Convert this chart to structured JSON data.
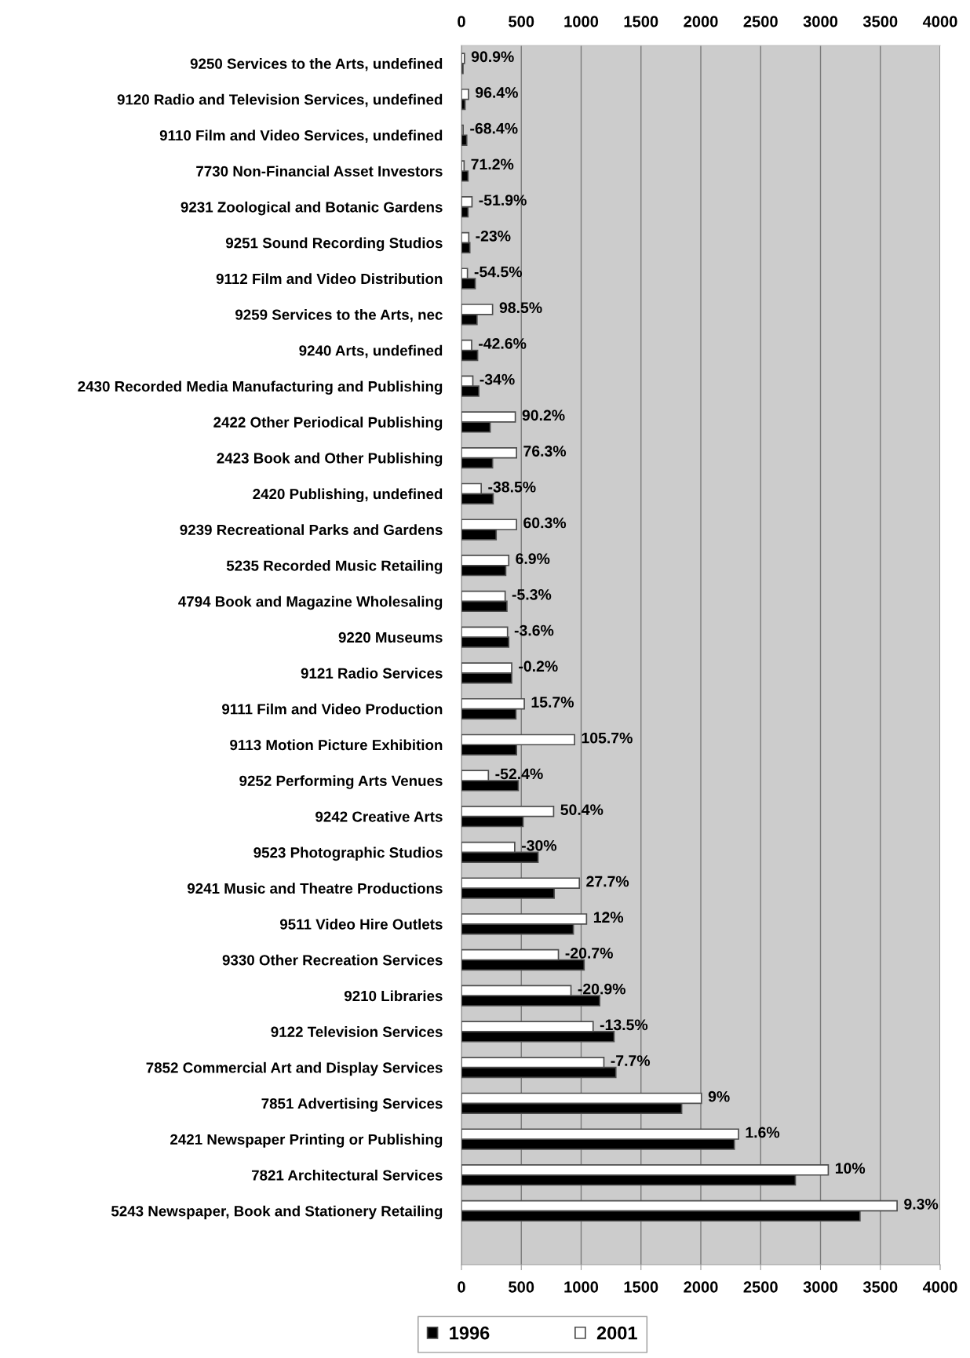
{
  "chart_data": {
    "type": "bar",
    "orientation": "horizontal",
    "categories": [
      "9250 Services to the Arts, undefined",
      "9120 Radio and Television Services, undefined",
      "9110 Film and Video Services, undefined",
      "7730 Non-Financial Asset Investors",
      "9231 Zoological and Botanic Gardens",
      "9251 Sound Recording Studios",
      "9112 Film and Video Distribution",
      "9259 Services to the Arts, nec",
      "9240 Arts, undefined",
      "2430 Recorded Media Manufacturing and Publishing",
      "2422 Other Periodical Publishing",
      "2423 Book and Other Publishing",
      "2420 Publishing, undefined",
      "9239 Recreational Parks and Gardens",
      "5235 Recorded Music Retailing",
      "4794 Book and Magazine Wholesaling",
      "9220 Museums",
      "9121 Radio Services",
      "9111 Film and Video Production",
      "9113 Motion Picture Exhibition",
      "9252 Performing Arts Venues",
      "9242 Creative Arts",
      "9523 Photographic Studios",
      "9241 Music and Theatre Productions",
      "9511 Video Hire Outlets",
      "9330 Other Recreation Services",
      "9210 Libraries",
      "9122 Television Services",
      "7852 Commercial Art and Display Services",
      "7851 Advertising Services",
      "2421 Newspaper Printing or Publishing",
      "7821 Architectural Services",
      "5243 Newspaper, Book and Stationery Retailing",
      null
    ],
    "series": [
      {
        "name": "1996",
        "color": "#000000",
        "values": [
          13,
          30,
          44,
          55,
          55,
          70,
          115,
          130,
          135,
          145,
          240,
          260,
          265,
          290,
          370,
          380,
          395,
          420,
          455,
          460,
          475,
          515,
          640,
          775,
          935,
          1025,
          1155,
          1275,
          1290,
          1840,
          2280,
          2790,
          3330,
          null
        ]
      },
      {
        "name": "2001",
        "color": "#ffffff",
        "values": [
          25,
          59,
          14,
          22,
          88,
          61,
          50,
          260,
          85,
          95,
          450,
          460,
          165,
          460,
          395,
          365,
          385,
          420,
          525,
          945,
          225,
          770,
          445,
          985,
          1045,
          810,
          915,
          1100,
          1190,
          2005,
          2315,
          3065,
          3640,
          null
        ]
      }
    ],
    "annotations": [
      {
        "text": "90.9%",
        "x": 25,
        "y": "9250 Services to the Arts, undefined"
      },
      {
        "text": "96.4%",
        "x": 59,
        "y": "9120 Radio and Television Services, undefined"
      },
      {
        "text": "-68.4%",
        "x": 14,
        "y": "9110 Film and Video Services, undefined"
      },
      {
        "text": "71.2%",
        "x": 22,
        "y": "7730 Non-Financial Asset Investors"
      },
      {
        "text": "-51.9%",
        "x": 88,
        "y": "9231 Zoological and Botanic Gardens"
      },
      {
        "text": "-23%",
        "x": 61,
        "y": "9251 Sound Recording Studios"
      },
      {
        "text": "-54.5%",
        "x": 50,
        "y": "9112 Film and Video Distribution"
      },
      {
        "text": "98.5%",
        "x": 260,
        "y": "9259 Services to the Arts, nec"
      },
      {
        "text": "-42.6%",
        "x": 85,
        "y": "9240 Arts, undefined"
      },
      {
        "text": "-34%",
        "x": 95,
        "y": "2430 Recorded Media Manufacturing and Publishing"
      },
      {
        "text": "90.2%",
        "x": 450,
        "y": "2422 Other Periodical Publishing"
      },
      {
        "text": "76.3%",
        "x": 460,
        "y": "2423 Book and Other Publishing"
      },
      {
        "text": "-38.5%",
        "x": 165,
        "y": "2420 Publishing, undefined"
      },
      {
        "text": "60.3%",
        "x": 460,
        "y": "9239 Recreational Parks and Gardens"
      },
      {
        "text": "6.9%",
        "x": 395,
        "y": "5235 Recorded Music Retailing"
      },
      {
        "text": "-5.3%",
        "x": 365,
        "y": "4794 Book and Magazine Wholesaling"
      },
      {
        "text": "-3.6%",
        "x": 385,
        "y": "9220 Museums"
      },
      {
        "text": "-0.2%",
        "x": 420,
        "y": "9121 Radio Services"
      },
      {
        "text": "15.7%",
        "x": 525,
        "y": "9111 Film and Video Production"
      },
      {
        "text": "105.7%",
        "x": 945,
        "y": "9113 Motion Picture Exhibition"
      },
      {
        "text": "-52.4%",
        "x": 225,
        "y": "9252 Performing Arts Venues"
      },
      {
        "text": "50.4%",
        "x": 770,
        "y": "9242 Creative Arts"
      },
      {
        "text": "-30%",
        "x": 445,
        "y": "9523 Photographic Studios"
      },
      {
        "text": "27.7%",
        "x": 985,
        "y": "9241 Music and Theatre Productions"
      },
      {
        "text": "12%",
        "x": 1045,
        "y": "9511 Video Hire Outlets"
      },
      {
        "text": "-20.7%",
        "x": 810,
        "y": "9330 Other Recreation Services"
      },
      {
        "text": "-20.9%",
        "x": 915,
        "y": "9210 Libraries"
      },
      {
        "text": "-13.5%",
        "x": 1100,
        "y": "9122 Television Services"
      },
      {
        "text": "-7.7%",
        "x": 1190,
        "y": "7852 Commercial Art and Display Services"
      },
      {
        "text": "9%",
        "x": 2005,
        "y": "7851 Advertising Services"
      },
      {
        "text": "1.6%",
        "x": 2315,
        "y": "2421 Newspaper Printing or Publishing"
      },
      {
        "text": "10%",
        "x": 3065,
        "y": "7821 Architectural Services"
      },
      {
        "text": "9.3%",
        "x": 3640,
        "y": "5243 Newspaper, Book and Stationery Retailing"
      }
    ],
    "xlim": [
      0,
      4000
    ],
    "xticks": [
      0,
      500,
      1000,
      1500,
      2000,
      2500,
      3000,
      3500,
      4000
    ],
    "x2lim": [
      0,
      4000
    ],
    "x2ticks": [
      0,
      500,
      1000,
      1500,
      2000,
      2500,
      3000,
      3500,
      4000
    ],
    "grid": "x",
    "legend": "bottom"
  }
}
